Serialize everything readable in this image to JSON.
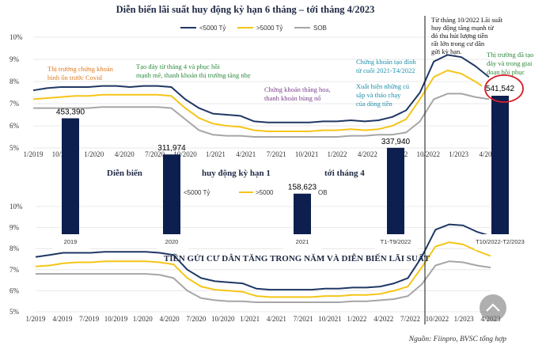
{
  "chart_data": [
    {
      "type": "line",
      "title": "Diễn biến lãi suất huy động kỳ hạn 6 tháng – tới tháng 4/2023",
      "ylim": [
        5,
        10
      ],
      "y_ticks": [
        "10%",
        "9%",
        "8%",
        "7%",
        "6%",
        "5%"
      ],
      "x_ticks": [
        "1/2019",
        "10/2019",
        "1/2020",
        "4/2020",
        "7/2020",
        "10/2020",
        "1/2021",
        "4/2021",
        "7/2021",
        "10/2021",
        "1/2022",
        "4/2022",
        "7/2022",
        "10/2022",
        "1/2023",
        "4/2023"
      ],
      "legend": [
        "<5000 Tỷ",
        ">5000 Tỷ",
        "SOB"
      ],
      "series": [
        {
          "name": "<5000 Tỷ",
          "color": "#1f3864",
          "values": [
            7.6,
            7.7,
            7.75,
            7.75,
            7.75,
            7.8,
            7.8,
            7.75,
            7.8,
            7.8,
            7.75,
            7.2,
            6.8,
            6.55,
            6.5,
            6.45,
            6.2,
            6.15,
            6.15,
            6.15,
            6.15,
            6.2,
            6.2,
            6.25,
            6.2,
            6.25,
            6.4,
            6.7,
            7.5,
            8.9,
            9.2,
            9.1,
            8.7,
            8.2
          ]
        },
        {
          "name": ">5000 Tỷ",
          "color": "#f5c518",
          "values": [
            7.2,
            7.25,
            7.3,
            7.35,
            7.35,
            7.4,
            7.4,
            7.4,
            7.4,
            7.4,
            7.35,
            6.8,
            6.35,
            6.1,
            6.0,
            5.95,
            5.8,
            5.75,
            5.75,
            5.75,
            5.75,
            5.8,
            5.8,
            5.85,
            5.8,
            5.85,
            6.0,
            6.3,
            7.2,
            8.2,
            8.5,
            8.35,
            8.0,
            7.6
          ]
        },
        {
          "name": "SOB",
          "color": "#a6a6a6",
          "values": [
            6.8,
            6.8,
            6.8,
            6.8,
            6.8,
            6.85,
            6.85,
            6.85,
            6.85,
            6.85,
            6.8,
            6.3,
            5.8,
            5.6,
            5.55,
            5.55,
            5.5,
            5.5,
            5.5,
            5.5,
            5.5,
            5.5,
            5.5,
            5.55,
            5.55,
            5.6,
            5.6,
            5.7,
            6.2,
            7.2,
            7.45,
            7.45,
            7.3,
            7.2
          ]
        }
      ],
      "annotations": [
        {
          "text": "Thị trường chứng khoán bình ổn trước Covid",
          "color": "#e07a1f"
        },
        {
          "text": "Tạo đáy từ tháng 4 và phục hồi mạnh mẽ, thanh khoản thị trường tăng nhẹ",
          "color": "#2e8b3e"
        },
        {
          "text": "Chứng khoán thăng hoa, thanh khoản bùng nổ",
          "color": "#7b3f8c"
        },
        {
          "text": "Chứng khoán tạo đỉnh từ cuối 2021-T4/2022",
          "color": "#1f8faa"
        },
        {
          "text": "Xuất hiện những cú sập và tháo chạy của dòng tiền",
          "color": "#1f8faa"
        },
        {
          "text": "Từ tháng 10/2022 Lãi suất huy động tăng mạnh từ đó thu hút lượng tiền rất lớn trong cư dân gửi kỳ hạn.",
          "color": "#111111"
        },
        {
          "text": "Thị trường đã tạo đáy và trong giai đoạn hồi phục",
          "color": "#2e8b3e"
        }
      ]
    },
    {
      "type": "bar",
      "title": "TIỀN GỬI CƯ DÂN TĂNG TRONG NĂM VÀ DIỄN BIẾN LÃI SUẤT",
      "categories": [
        "2019",
        "2020",
        "2021",
        "T1-T9/2022",
        "T10/2022-T2/2023"
      ],
      "values": [
        453390,
        311974,
        158623,
        337940,
        541542
      ],
      "value_labels": [
        "453,390",
        "311,974",
        "158,623",
        "337,940",
        "541,542"
      ],
      "color": "#0d1f4e"
    },
    {
      "type": "line",
      "title_fragments": [
        "Diễn biến",
        "huy động kỳ hạn 1",
        "tới tháng 4"
      ],
      "ylim": [
        5,
        10
      ],
      "y_ticks": [
        "10%",
        "9%",
        "8%",
        "7%",
        "6%",
        "5%"
      ],
      "x_ticks": [
        "1/2019",
        "4/2019",
        "7/2019",
        "10/2019",
        "1/2020",
        "4/2020",
        "7/2020",
        "10/2020",
        "1/2021",
        "4/2021",
        "7/2021",
        "10/2021",
        "1/2022",
        "4/2022",
        "7/2022",
        "10/2022",
        "1/2023",
        "4/2023"
      ],
      "legend": [
        "<5000 Tỷ",
        ">5000",
        "OB"
      ],
      "series": [
        {
          "name": "<5000 Tỷ",
          "color": "#1f3864",
          "values": [
            7.6,
            7.7,
            7.8,
            7.8,
            7.8,
            7.85,
            7.85,
            7.85,
            7.85,
            7.8,
            7.7,
            7.0,
            6.6,
            6.45,
            6.4,
            6.35,
            6.1,
            6.05,
            6.05,
            6.05,
            6.05,
            6.1,
            6.1,
            6.15,
            6.15,
            6.2,
            6.35,
            6.6,
            7.6,
            8.9,
            9.15,
            9.1,
            8.8,
            8.6
          ]
        },
        {
          "name": ">5000",
          "color": "#f5c518",
          "values": [
            7.15,
            7.2,
            7.3,
            7.35,
            7.35,
            7.4,
            7.4,
            7.4,
            7.4,
            7.35,
            7.25,
            6.6,
            6.2,
            6.05,
            6.0,
            5.95,
            5.75,
            5.7,
            5.7,
            5.7,
            5.7,
            5.75,
            5.75,
            5.8,
            5.8,
            5.85,
            6.0,
            6.2,
            7.1,
            8.1,
            8.3,
            8.2,
            7.9,
            7.65
          ]
        },
        {
          "name": "OB",
          "color": "#a6a6a6",
          "values": [
            6.8,
            6.8,
            6.8,
            6.8,
            6.8,
            6.8,
            6.8,
            6.8,
            6.8,
            6.75,
            6.6,
            6.0,
            5.65,
            5.55,
            5.5,
            5.5,
            5.45,
            5.45,
            5.45,
            5.45,
            5.45,
            5.45,
            5.45,
            5.5,
            5.5,
            5.55,
            5.6,
            5.75,
            6.3,
            7.2,
            7.4,
            7.35,
            7.2,
            7.1
          ]
        }
      ]
    }
  ],
  "source": "Nguồn: Fiinpro, BVSC tổng hợp"
}
